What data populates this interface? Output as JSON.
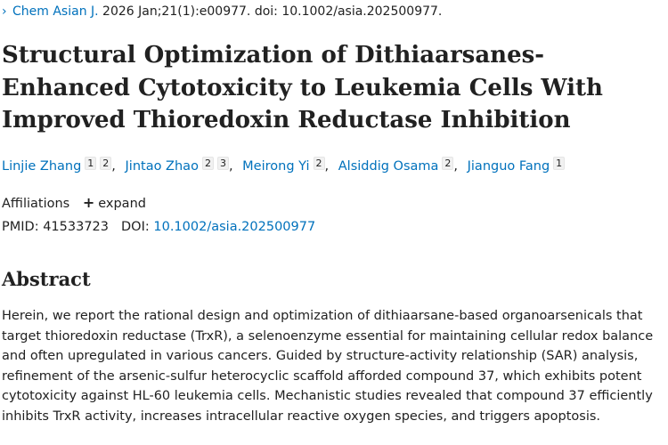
{
  "citation": {
    "chevron": "›",
    "journal": "Chem Asian J.",
    "details": " 2026 Jan;21(1):e00977. doi: 10.1002/asia.202500977."
  },
  "title": "Structural Optimization of Dithiaarsanes‐Enhanced Cytotoxicity to Leukemia Cells With Improved Thioredoxin Reductase Inhibition",
  "authors": [
    {
      "name": "Linjie Zhang",
      "affils": [
        "1",
        "2"
      ]
    },
    {
      "name": "Jintao Zhao",
      "affils": [
        "2",
        "3"
      ]
    },
    {
      "name": "Meirong Yi",
      "affils": [
        "2"
      ]
    },
    {
      "name": "Alsiddig Osama",
      "affils": [
        "2"
      ]
    },
    {
      "name": "Jianguo Fang",
      "affils": [
        "1"
      ]
    }
  ],
  "affiliations": {
    "label": "Affiliations",
    "expand_icon": "+",
    "expand_label": "expand"
  },
  "identifiers": {
    "pmid_label": "PMID:",
    "pmid_value": "41533723",
    "doi_label": "DOI:",
    "doi_value": "10.1002/asia.202500977"
  },
  "abstract": {
    "heading": "Abstract",
    "text": "Herein, we report the rational design and optimization of dithiaarsane-based organoarsenicals that target thioredoxin reductase (TrxR), a selenoenzyme essential for maintaining cellular redox balance and often upregulated in various cancers. Guided by structure-activity relationship (SAR) analysis, refinement of the arsenic-sulfur heterocyclic scaffold afforded compound 37, which exhibits potent cytotoxicity against HL-60 leukemia cells. Mechanistic studies revealed that compound 37 efficiently inhibits TrxR activity, increases intracellular reactive oxygen species, and triggers apoptosis."
  },
  "colors": {
    "link": "#0071bc",
    "text": "#212121"
  }
}
